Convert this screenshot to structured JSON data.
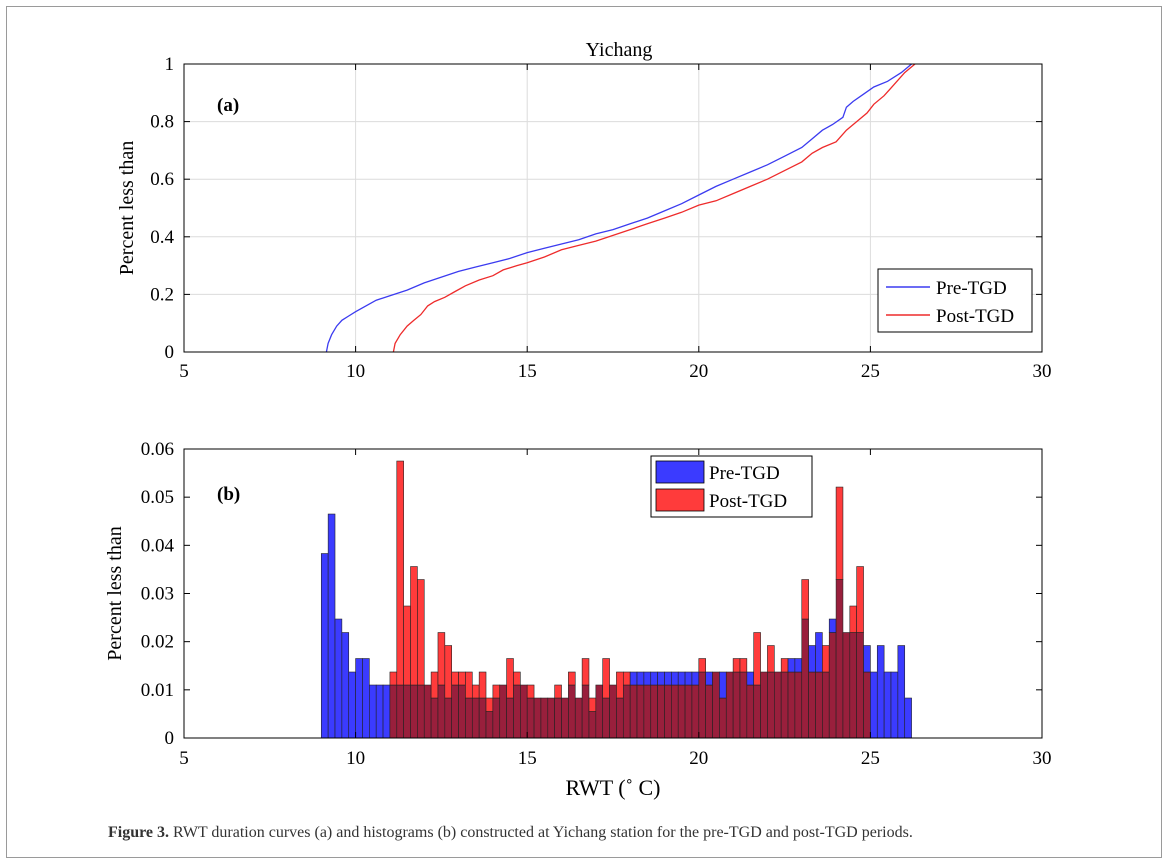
{
  "chart_data": [
    {
      "type": "line",
      "title": "Yichang",
      "panel_label": "(a)",
      "xlabel": "",
      "ylabel": "Percent less than",
      "xlim": [
        5,
        30
      ],
      "ylim": [
        0,
        1
      ],
      "xticks": [
        5,
        10,
        15,
        20,
        25,
        30
      ],
      "yticks": [
        0,
        0.2,
        0.4,
        0.6,
        0.8,
        1
      ],
      "grid": true,
      "legend_position": "bottom-right",
      "series": [
        {
          "name": "Pre-TGD",
          "color": "#3b3bf0",
          "x": [
            9.15,
            9.2,
            9.3,
            9.45,
            9.6,
            9.8,
            10.0,
            10.3,
            10.6,
            11.0,
            11.5,
            12.0,
            12.5,
            13.0,
            13.5,
            14.0,
            14.5,
            15.0,
            15.5,
            16.0,
            16.5,
            17.0,
            17.5,
            18.0,
            18.5,
            19.0,
            19.5,
            20.0,
            20.5,
            21.0,
            21.5,
            22.0,
            22.5,
            23.0,
            23.3,
            23.6,
            23.9,
            24.2,
            24.3,
            24.5,
            24.8,
            25.1,
            25.5,
            25.9,
            26.2
          ],
          "y": [
            0.0,
            0.03,
            0.06,
            0.09,
            0.11,
            0.125,
            0.14,
            0.16,
            0.18,
            0.195,
            0.215,
            0.24,
            0.26,
            0.28,
            0.295,
            0.31,
            0.325,
            0.345,
            0.36,
            0.375,
            0.39,
            0.41,
            0.425,
            0.445,
            0.465,
            0.49,
            0.515,
            0.545,
            0.575,
            0.6,
            0.625,
            0.65,
            0.68,
            0.71,
            0.74,
            0.77,
            0.79,
            0.815,
            0.85,
            0.87,
            0.895,
            0.92,
            0.94,
            0.97,
            1.0
          ]
        },
        {
          "name": "Post-TGD",
          "color": "#ee2b2b",
          "x": [
            11.1,
            11.15,
            11.3,
            11.5,
            11.7,
            11.9,
            12.1,
            12.3,
            12.6,
            12.9,
            13.2,
            13.6,
            14.0,
            14.3,
            14.7,
            15.0,
            15.5,
            16.0,
            16.5,
            17.0,
            17.5,
            18.0,
            18.5,
            19.0,
            19.5,
            20.0,
            20.5,
            21.0,
            21.5,
            22.0,
            22.5,
            23.0,
            23.3,
            23.6,
            24.0,
            24.3,
            24.6,
            24.9,
            25.1,
            25.4,
            25.7,
            26.0,
            26.3
          ],
          "y": [
            0.0,
            0.03,
            0.06,
            0.09,
            0.11,
            0.13,
            0.16,
            0.175,
            0.19,
            0.21,
            0.23,
            0.25,
            0.265,
            0.285,
            0.3,
            0.31,
            0.33,
            0.355,
            0.37,
            0.385,
            0.405,
            0.425,
            0.445,
            0.465,
            0.485,
            0.51,
            0.525,
            0.55,
            0.575,
            0.6,
            0.63,
            0.66,
            0.69,
            0.71,
            0.73,
            0.77,
            0.8,
            0.83,
            0.86,
            0.89,
            0.93,
            0.97,
            1.0
          ]
        }
      ]
    },
    {
      "type": "bar",
      "panel_label": "(b)",
      "xlabel": "RWT (˚ C)",
      "ylabel": "Percent less than",
      "xlim": [
        5,
        30
      ],
      "ylim": [
        0,
        0.06
      ],
      "xticks": [
        5,
        10,
        15,
        20,
        25,
        30
      ],
      "yticks": [
        0,
        0.01,
        0.02,
        0.03,
        0.04,
        0.05,
        0.06
      ],
      "grid": false,
      "legend_position": "top-center",
      "bin_start": 9.0,
      "bin_width": 0.2,
      "series": [
        {
          "name": "Pre-TGD",
          "color": "#3b3bff",
          "values": [
            0.0383,
            0.0465,
            0.0247,
            0.0219,
            0.0137,
            0.0165,
            0.0165,
            0.011,
            0.011,
            0.011,
            0.011,
            0.011,
            0.011,
            0.011,
            0.011,
            0.011,
            0.0083,
            0.011,
            0.0083,
            0.011,
            0.011,
            0.0083,
            0.0083,
            0.0083,
            0.0055,
            0.0083,
            0.011,
            0.0083,
            0.011,
            0.011,
            0.0083,
            0.0083,
            0.0083,
            0.0083,
            0.0083,
            0.0083,
            0.011,
            0.0083,
            0.011,
            0.0055,
            0.011,
            0.0083,
            0.011,
            0.0083,
            0.011,
            0.0137,
            0.0137,
            0.0137,
            0.0137,
            0.0137,
            0.0137,
            0.0137,
            0.0137,
            0.0137,
            0.0137,
            0.0137,
            0.0137,
            0.0137,
            0.0137,
            0.0137,
            0.0137,
            0.0137,
            0.0137,
            0.011,
            0.0137,
            0.0137,
            0.0137,
            0.0137,
            0.0165,
            0.0165,
            0.0247,
            0.0192,
            0.0219,
            0.0137,
            0.0247,
            0.0329,
            0.0219,
            0.0219,
            0.0219,
            0.0192,
            0.0137,
            0.0192,
            0.0137,
            0.0137,
            0.0192,
            0.0083
          ],
          "values_note": ""
        },
        {
          "name": "Post-TGD",
          "color": "#ff3b3b",
          "values": [
            0,
            0,
            0,
            0,
            0,
            0,
            0,
            0,
            0,
            0,
            0.0137,
            0.0575,
            0.0274,
            0.0356,
            0.0329,
            0.011,
            0.0137,
            0.0219,
            0.0192,
            0.0137,
            0.0137,
            0.0137,
            0.011,
            0.0137,
            0.0083,
            0.011,
            0.011,
            0.0165,
            0.0137,
            0.011,
            0.011,
            0.0083,
            0.0083,
            0.0083,
            0.011,
            0.0083,
            0.0137,
            0.0083,
            0.0165,
            0.0083,
            0.011,
            0.0165,
            0.011,
            0.0137,
            0.0137,
            0.011,
            0.011,
            0.011,
            0.011,
            0.011,
            0.011,
            0.011,
            0.011,
            0.011,
            0.011,
            0.0165,
            0.011,
            0.0137,
            0.0083,
            0.0137,
            0.0165,
            0.0165,
            0.011,
            0.0219,
            0.0137,
            0.0192,
            0.0137,
            0.0165,
            0.0137,
            0.0137,
            0.0329,
            0.0137,
            0.0137,
            0.0192,
            0.0219,
            0.0521,
            0.0219,
            0.0274,
            0.0356,
            0.0137,
            0,
            0,
            0,
            0,
            0,
            0
          ],
          "values_note": ""
        }
      ],
      "overlap_color": "#991f3c"
    }
  ],
  "caption": {
    "label": "Figure 3.",
    "text": " RWT duration curves (a) and histograms (b) constructed at Yichang station for the pre-TGD and post-TGD periods."
  }
}
